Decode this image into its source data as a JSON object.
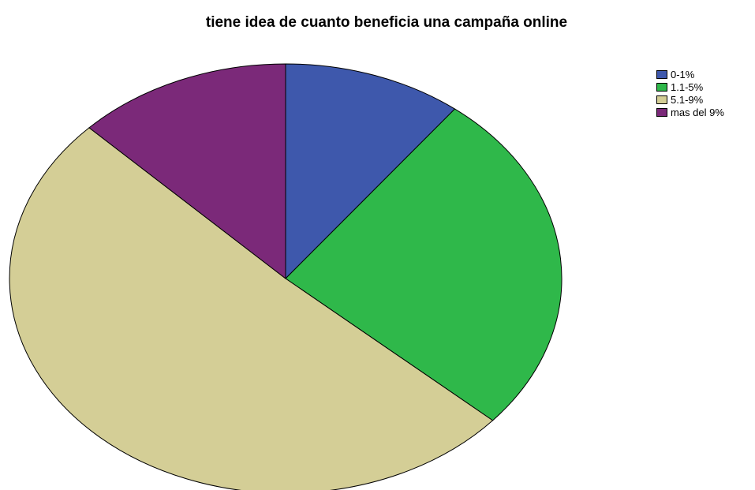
{
  "chart_data": {
    "type": "pie",
    "title": "tiene idea de cuanto beneficia una campaña online",
    "categories": [
      "0-1%",
      "1.1-5%",
      "5.1-9%",
      "mas del 9%"
    ],
    "values": [
      10.5,
      26.0,
      50.9,
      12.6
    ],
    "colors": [
      "#3e58ac",
      "#2fb84a",
      "#d4ce96",
      "#7b2979"
    ],
    "start_angle": "12 o'clock",
    "direction": "clockwise",
    "legend_position": "top-right",
    "slice_labels": false
  }
}
